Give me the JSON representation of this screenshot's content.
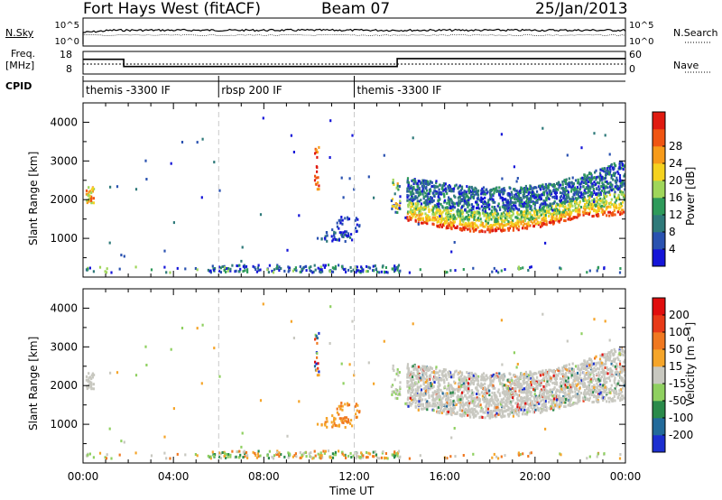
{
  "header": {
    "title": "Fort Hays West (fitACF)",
    "beam": "Beam 07",
    "date": "25/Jan/2013"
  },
  "side_labels": {
    "nsky": "N.Sky",
    "nsearch": "N.Search",
    "freq_top": "Freq.",
    "freq_unit": "[MHz]",
    "nave": "Nave",
    "cpid": "CPID"
  },
  "cpid_segments": [
    {
      "label": "themis -3300 IF",
      "start_hour": 0,
      "end_hour": 6
    },
    {
      "label": "rbsp 200 IF",
      "start_hour": 6,
      "end_hour": 12
    },
    {
      "label": "themis -3300 IF",
      "start_hour": 12,
      "end_hour": 24
    }
  ],
  "chart_data": [
    {
      "type": "line",
      "panel": "noise",
      "left_ticks": [
        "10^5",
        "10^0"
      ],
      "right_ticks": [
        "10^5",
        "10^0"
      ]
    },
    {
      "type": "line",
      "panel": "frequency-nave",
      "ylim_left": [
        8,
        18
      ],
      "left_ticks": [
        "18",
        "8"
      ],
      "right_ticks": [
        "60",
        "0"
      ],
      "freq_series": {
        "x": [
          0,
          1.8,
          1.8,
          13.9,
          13.9,
          24
        ],
        "y": [
          15.0,
          15.0,
          10.8,
          10.8,
          15.4,
          15.4
        ]
      },
      "nave_level": 12.2
    },
    {
      "type": "heatmap",
      "panel": "power",
      "ylabel": "Slant Range [km]",
      "xlim_hours": [
        0,
        24
      ],
      "ylim": [
        0,
        4500
      ],
      "yticks": [
        1000,
        2000,
        3000,
        4000
      ],
      "colorbar": {
        "label": "Power [dB]",
        "ticks": [
          "4",
          "8",
          "12",
          "16",
          "20",
          "24",
          "28"
        ],
        "colors": [
          "#1515d8",
          "#2a52b0",
          "#2f7a7a",
          "#2e9a5a",
          "#9fd65a",
          "#f5d21f",
          "#f79b1a",
          "#f05512",
          "#e01a10"
        ]
      }
    },
    {
      "type": "heatmap",
      "panel": "velocity",
      "ylabel": "Slant Range [km]",
      "xlabel": "Time UT",
      "xlim_hours": [
        0,
        24
      ],
      "ylim": [
        0,
        4500
      ],
      "yticks": [
        1000,
        2000,
        3000,
        4000
      ],
      "xtick_labels": [
        "00:00",
        "04:00",
        "08:00",
        "12:00",
        "16:00",
        "20:00",
        "00:00"
      ],
      "colorbar": {
        "label": "Velocity [m s⁻¹]",
        "ticks": [
          "200",
          "100",
          "50",
          "15",
          "-15",
          "-50",
          "-100",
          "-200"
        ],
        "colors": [
          "#1c2fd0",
          "#226a9a",
          "#2a8a4a",
          "#8fd060",
          "#c8c8c0",
          "#f5a52a",
          "#f07820",
          "#e83a18",
          "#e00e0e"
        ]
      }
    }
  ]
}
